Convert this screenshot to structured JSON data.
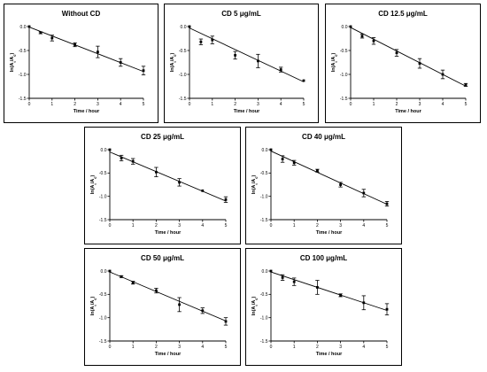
{
  "chart_data": [
    {
      "type": "scatter",
      "title": "Without CD",
      "xlabel": "Time / hour",
      "ylabel": "ln(At/A0)",
      "xlim": [
        0,
        5
      ],
      "ylim": [
        -1.5,
        0.0
      ],
      "xticks": [
        "0",
        "1",
        "2",
        "3",
        "4",
        "5"
      ],
      "yticks": [
        "0.0",
        "-0.5",
        "-1.0",
        "-1.5"
      ],
      "series": [
        {
          "x": [
            0,
            0.5,
            1,
            2,
            3,
            4,
            5
          ],
          "y": [
            0.0,
            -0.13,
            -0.24,
            -0.38,
            -0.53,
            -0.75,
            -0.92
          ],
          "err": [
            0.0,
            0.02,
            0.06,
            0.04,
            0.12,
            0.08,
            0.09
          ],
          "fit": {
            "slope": -0.186,
            "intercept": -0.01
          }
        }
      ]
    },
    {
      "type": "scatter",
      "title": "CD 5 μg/mL",
      "xlabel": "Time / hour",
      "ylabel": "ln(At/A0)",
      "xlim": [
        0,
        5
      ],
      "ylim": [
        -1.5,
        0.0
      ],
      "xticks": [
        "0",
        "1",
        "2",
        "3",
        "4",
        "5"
      ],
      "yticks": [
        "0.0",
        "-0.5",
        "-1.0",
        "-1.5"
      ],
      "series": [
        {
          "x": [
            0,
            0.5,
            1,
            2,
            3,
            4,
            5
          ],
          "y": [
            0.0,
            -0.32,
            -0.28,
            -0.6,
            -0.72,
            -0.9,
            -1.13
          ],
          "err": [
            0.0,
            0.06,
            0.08,
            0.08,
            0.14,
            0.05,
            0.0
          ],
          "fit": {
            "slope": -0.225,
            "intercept": -0.03
          }
        }
      ]
    },
    {
      "type": "scatter",
      "title": "CD 12.5 μg/mL",
      "xlabel": "Time / hour",
      "ylabel": "ln(At/A0)",
      "xlim": [
        0,
        5
      ],
      "ylim": [
        -1.5,
        0.0
      ],
      "xticks": [
        "0",
        "1",
        "2",
        "3",
        "4",
        "5"
      ],
      "yticks": [
        "0.0",
        "-0.5",
        "-1.0",
        "-1.5"
      ],
      "series": [
        {
          "x": [
            0,
            0.5,
            1,
            2,
            3,
            4,
            5
          ],
          "y": [
            0.0,
            -0.2,
            -0.3,
            -0.55,
            -0.77,
            -1.0,
            -1.22
          ],
          "err": [
            0.0,
            0.04,
            0.07,
            0.07,
            0.1,
            0.09,
            0.03
          ],
          "fit": {
            "slope": -0.245,
            "intercept": -0.02
          }
        }
      ]
    },
    {
      "type": "scatter",
      "title": "CD 25 μg/mL",
      "xlabel": "Time / hour",
      "ylabel": "ln(At/A0)",
      "xlim": [
        0,
        5
      ],
      "ylim": [
        -1.5,
        0.0
      ],
      "xticks": [
        "0",
        "1",
        "2",
        "3",
        "4",
        "5"
      ],
      "yticks": [
        "0.0",
        "-0.5",
        "-1.0",
        "-1.5"
      ],
      "series": [
        {
          "x": [
            0,
            0.5,
            1,
            2,
            3,
            4,
            5
          ],
          "y": [
            0.0,
            -0.18,
            -0.25,
            -0.48,
            -0.7,
            -0.88,
            -1.07
          ],
          "err": [
            0.0,
            0.06,
            0.06,
            0.1,
            0.08,
            0.0,
            0.06
          ],
          "fit": {
            "slope": -0.21,
            "intercept": -0.05
          }
        }
      ]
    },
    {
      "type": "scatter",
      "title": "CD 40 μg/mL",
      "xlabel": "Time / hour",
      "ylabel": "ln(At/A0)",
      "xlim": [
        0,
        5
      ],
      "ylim": [
        -1.5,
        0.0
      ],
      "xticks": [
        "0",
        "1",
        "2",
        "3",
        "4",
        "5"
      ],
      "yticks": [
        "0.0",
        "-0.5",
        "-1.0",
        "-1.5"
      ],
      "series": [
        {
          "x": [
            0,
            0.5,
            1,
            2,
            3,
            4,
            5
          ],
          "y": [
            0.0,
            -0.2,
            -0.28,
            -0.45,
            -0.75,
            -0.93,
            -1.16
          ],
          "err": [
            0.0,
            0.07,
            0.05,
            0.03,
            0.05,
            0.08,
            0.05
          ],
          "fit": {
            "slope": -0.228,
            "intercept": -0.03
          }
        }
      ]
    },
    {
      "type": "scatter",
      "title": "CD 50 μg/mL",
      "xlabel": "Time / hour",
      "ylabel": "ln(At/A0)",
      "xlim": [
        0,
        5
      ],
      "ylim": [
        -1.5,
        0.0
      ],
      "xticks": [
        "0",
        "1",
        "2",
        "3",
        "4",
        "5"
      ],
      "yticks": [
        "0.0",
        "-0.5",
        "-1.0",
        "-1.5"
      ],
      "series": [
        {
          "x": [
            0,
            0.5,
            1,
            2,
            3,
            4,
            5
          ],
          "y": [
            0.0,
            -0.12,
            -0.25,
            -0.42,
            -0.72,
            -0.85,
            -1.08
          ],
          "err": [
            0.0,
            0.02,
            0.03,
            0.05,
            0.15,
            0.06,
            0.08
          ],
          "fit": {
            "slope": -0.21,
            "intercept": -0.02
          }
        }
      ]
    },
    {
      "type": "scatter",
      "title": "CD 100 μg/mL",
      "xlabel": "Time / hour",
      "ylabel": "ln(At/A0)",
      "xlim": [
        0,
        5
      ],
      "ylim": [
        -1.5,
        0.0
      ],
      "xticks": [
        "0",
        "1",
        "2",
        "3",
        "4",
        "5"
      ],
      "yticks": [
        "0.0",
        "-0.5",
        "-1.0",
        "-1.5"
      ],
      "series": [
        {
          "x": [
            0,
            0.5,
            1,
            2,
            3,
            4,
            5
          ],
          "y": [
            0.0,
            -0.14,
            -0.23,
            -0.35,
            -0.52,
            -0.68,
            -0.82
          ],
          "err": [
            0.0,
            0.06,
            0.08,
            0.15,
            0.03,
            0.15,
            0.12
          ],
          "fit": {
            "slope": -0.165,
            "intercept": -0.02
          }
        }
      ]
    }
  ]
}
